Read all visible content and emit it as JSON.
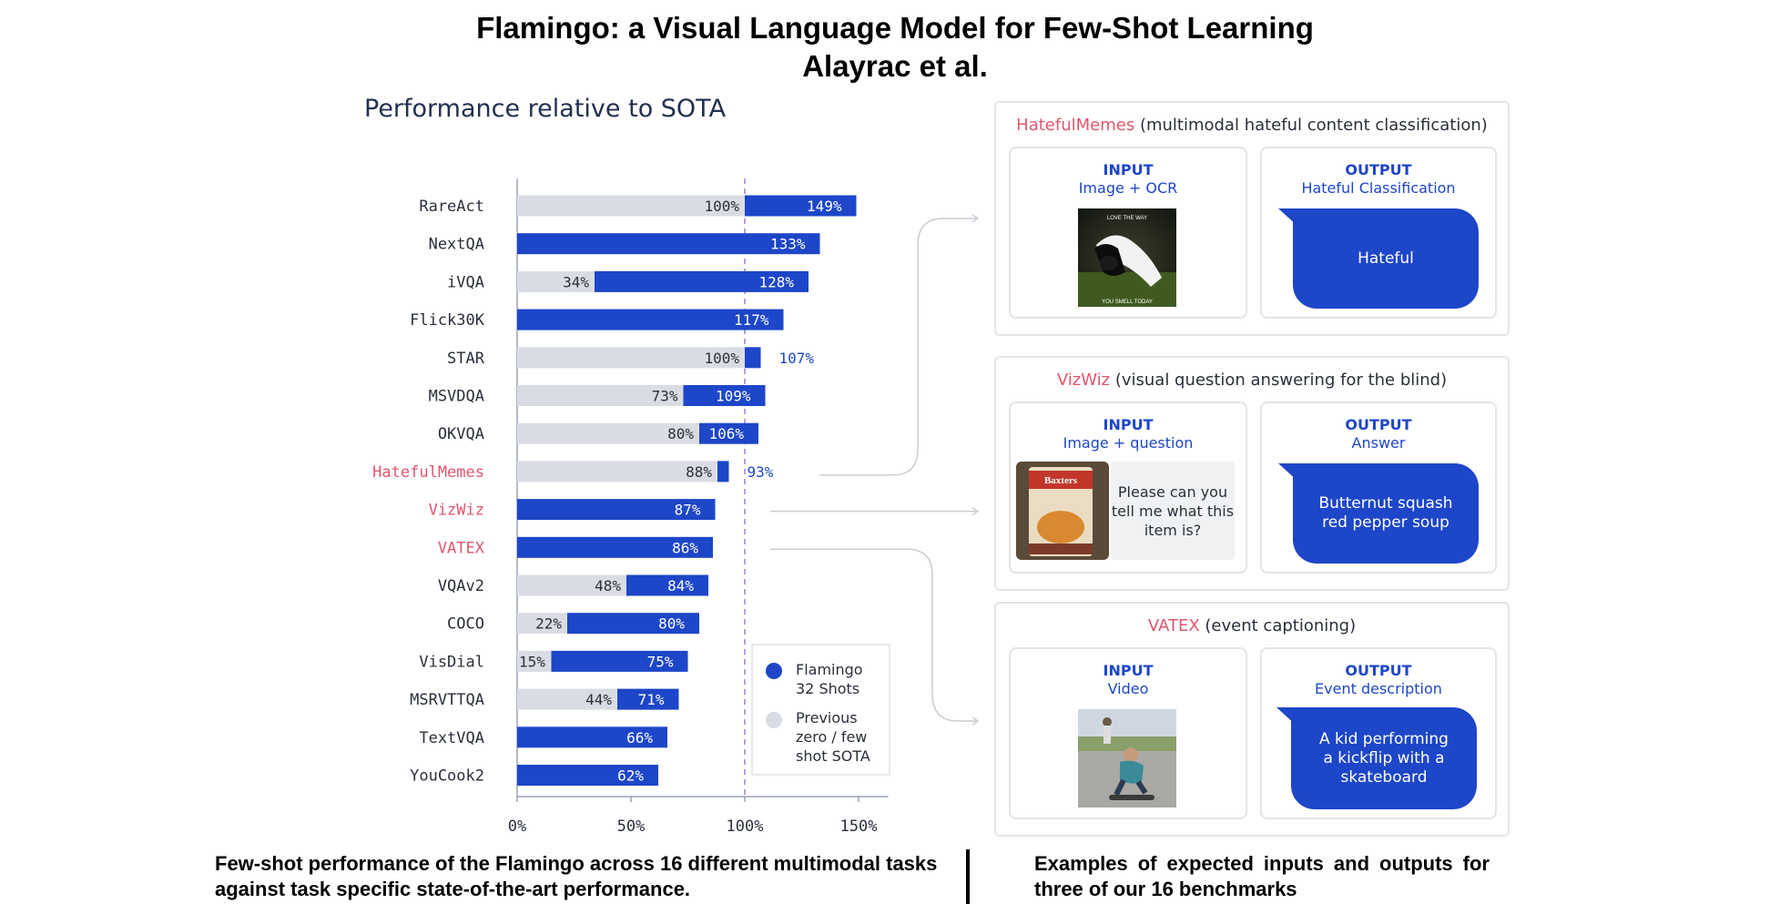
{
  "title": "Flamingo: a Visual Language Model for Few-Shot Learning",
  "authors": "Alayrac et al.",
  "chart_title": "Performance relative to SOTA",
  "chart_data": {
    "type": "bar",
    "orientation": "horizontal",
    "title": "Performance relative to SOTA",
    "categories": [
      "RareAct",
      "NextQA",
      "iVQA",
      "Flick30K",
      "STAR",
      "MSVDQA",
      "OKVQA",
      "HatefulMemes",
      "VizWiz",
      "VATEX",
      "VQAv2",
      "COCO",
      "VisDial",
      "MSRVTTQA",
      "TextVQA",
      "YouCook2"
    ],
    "highlighted_categories": [
      "HatefulMemes",
      "VizWiz",
      "VATEX"
    ],
    "series": [
      {
        "name": "Flamingo 32 Shots",
        "values": [
          149,
          133,
          128,
          117,
          107,
          109,
          106,
          93,
          87,
          86,
          84,
          80,
          75,
          71,
          66,
          62
        ]
      },
      {
        "name": "Previous zero / few shot SOTA",
        "values": [
          100,
          null,
          34,
          null,
          100,
          73,
          80,
          88,
          null,
          null,
          48,
          22,
          15,
          44,
          null,
          null
        ]
      }
    ],
    "xticks": [
      "0%",
      "50%",
      "100%",
      "150%"
    ],
    "xlim": [
      0,
      160
    ],
    "reference_line": 100,
    "colors": {
      "flamingo": "#1d46c8",
      "sota": "#d9dde3",
      "highlight_label": "#e0566d",
      "reference": "#9d7ee0"
    },
    "legend": {
      "placement": "lower-right",
      "items": [
        "Flamingo\n32 Shots",
        "Previous\nzero / few\nshot SOTA"
      ]
    }
  },
  "panels": [
    {
      "name": "HatefulMemes",
      "desc": "(multimodal hateful content classification)",
      "input_title": "INPUT",
      "input_sub": "Image + OCR",
      "output_title": "OUTPUT",
      "output_sub": "Hateful Classification",
      "output_text": "Hateful",
      "image_caption_top": "LOVE THE WAY",
      "image_caption_bottom": "YOU SMELL TODAY"
    },
    {
      "name": "VizWiz",
      "desc": "(visual question answering for the blind)",
      "input_title": "INPUT",
      "input_sub": "Image + question",
      "question": "Please can you tell me what this item is?",
      "output_title": "OUTPUT",
      "output_sub": "Answer",
      "output_text": "Butternut squash red pepper soup",
      "image_label": "Baxters"
    },
    {
      "name": "VATEX",
      "desc": "(event captioning)",
      "input_title": "INPUT",
      "input_sub": "Video",
      "output_title": "OUTPUT",
      "output_sub": "Event description",
      "output_text": "A kid performing a kickflip with a skateboard"
    }
  ],
  "caption_left": "Few-shot performance of the Flamingo across 16 different multimodal tasks against task specific state-of-the-art performance.",
  "caption_right": "Examples of expected inputs and outputs for three of our 16 benchmarks"
}
